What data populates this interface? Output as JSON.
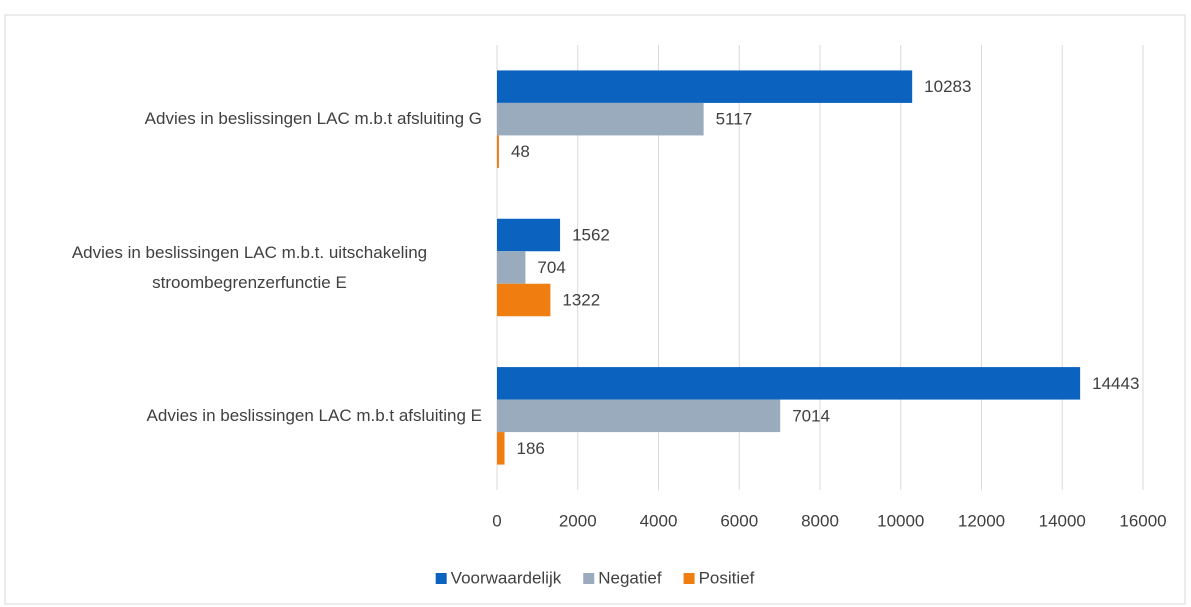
{
  "chart_data": {
    "type": "bar",
    "orientation": "horizontal",
    "categories": [
      "Advies in beslissingen LAC m.b.t afsluiting G",
      "Advies in beslissingen LAC m.b.t. uitschakeling stroombegrenzerfunctie E",
      "Advies in beslissingen LAC m.b.t afsluiting E"
    ],
    "series": [
      {
        "name": "Voorwaardelijk",
        "color": "#0b63bf",
        "values": [
          10283,
          1562,
          14443
        ]
      },
      {
        "name": "Negatief",
        "color": "#9aabbd",
        "values": [
          5117,
          704,
          7014
        ]
      },
      {
        "name": "Positief",
        "color": "#ef7d10",
        "values": [
          48,
          1322,
          186
        ]
      }
    ],
    "xlim": [
      0,
      16000
    ],
    "xticks": [
      0,
      2000,
      4000,
      6000,
      8000,
      10000,
      12000,
      14000,
      16000
    ],
    "grid": true,
    "legend": "bottom"
  }
}
